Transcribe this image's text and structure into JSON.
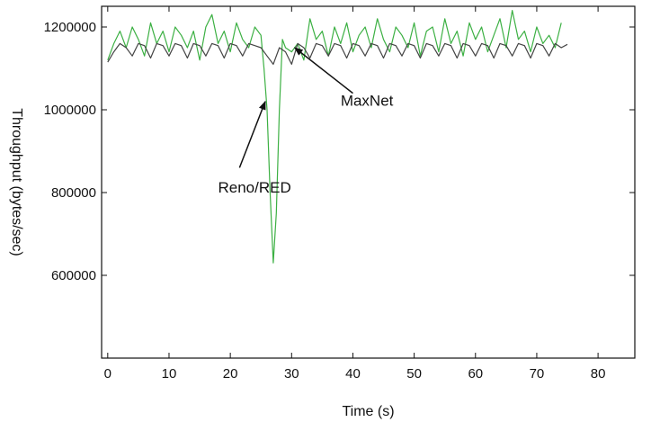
{
  "chart_data": {
    "type": "line",
    "title": "",
    "xlabel": "Time (s)",
    "ylabel": "Throughput (bytes/sec)",
    "xlim": [
      -1,
      86
    ],
    "ylim": [
      400000,
      1250000
    ],
    "xticks": [
      0,
      10,
      20,
      30,
      40,
      50,
      60,
      70,
      80
    ],
    "yticks": [
      600000,
      800000,
      1000000,
      1200000
    ],
    "grid": false,
    "series": [
      {
        "name": "Reno/RED",
        "color": "#3cb043",
        "x": [
          0,
          1,
          2,
          3,
          4,
          5,
          6,
          7,
          8,
          9,
          10,
          11,
          12,
          13,
          14,
          15,
          16,
          17,
          18,
          19,
          20,
          21,
          22,
          23,
          24,
          25,
          25.5,
          26,
          26.5,
          27,
          27.5,
          28,
          28.5,
          29,
          30,
          31,
          32,
          33,
          34,
          35,
          36,
          37,
          38,
          39,
          40,
          41,
          42,
          43,
          44,
          45,
          46,
          47,
          48,
          49,
          50,
          51,
          52,
          53,
          54,
          55,
          56,
          57,
          58,
          59,
          60,
          61,
          62,
          63,
          64,
          65,
          66,
          67,
          68,
          69,
          70,
          71,
          72,
          73,
          74
        ],
        "values": [
          1120000,
          1160000,
          1190000,
          1150000,
          1200000,
          1170000,
          1130000,
          1210000,
          1160000,
          1190000,
          1140000,
          1200000,
          1180000,
          1150000,
          1190000,
          1120000,
          1200000,
          1230000,
          1160000,
          1190000,
          1140000,
          1210000,
          1170000,
          1150000,
          1200000,
          1180000,
          1100000,
          1000000,
          800000,
          630000,
          750000,
          1000000,
          1170000,
          1150000,
          1140000,
          1160000,
          1120000,
          1220000,
          1170000,
          1190000,
          1130000,
          1200000,
          1160000,
          1210000,
          1140000,
          1180000,
          1200000,
          1150000,
          1220000,
          1170000,
          1140000,
          1200000,
          1180000,
          1150000,
          1210000,
          1130000,
          1190000,
          1200000,
          1140000,
          1220000,
          1160000,
          1190000,
          1130000,
          1210000,
          1170000,
          1200000,
          1140000,
          1180000,
          1220000,
          1150000,
          1240000,
          1170000,
          1190000,
          1140000,
          1200000,
          1160000,
          1180000,
          1150000,
          1210000
        ]
      },
      {
        "name": "MaxNet",
        "color": "#444444",
        "x": [
          0,
          1,
          2,
          3,
          4,
          5,
          6,
          7,
          8,
          9,
          10,
          11,
          12,
          13,
          14,
          15,
          16,
          17,
          18,
          19,
          20,
          21,
          22,
          23,
          24,
          25,
          26,
          27,
          28,
          29,
          30,
          31,
          32,
          33,
          34,
          35,
          36,
          37,
          38,
          39,
          40,
          41,
          42,
          43,
          44,
          45,
          46,
          47,
          48,
          49,
          50,
          51,
          52,
          53,
          54,
          55,
          56,
          57,
          58,
          59,
          60,
          61,
          62,
          63,
          64,
          65,
          66,
          67,
          68,
          69,
          70,
          71,
          72,
          73,
          74,
          75
        ],
        "values": [
          1115000,
          1140000,
          1160000,
          1150000,
          1130000,
          1160000,
          1155000,
          1125000,
          1160000,
          1155000,
          1130000,
          1160000,
          1155000,
          1125000,
          1160000,
          1155000,
          1130000,
          1160000,
          1155000,
          1125000,
          1160000,
          1155000,
          1130000,
          1160000,
          1155000,
          1150000,
          1130000,
          1110000,
          1150000,
          1140000,
          1110000,
          1160000,
          1150000,
          1125000,
          1160000,
          1155000,
          1130000,
          1160000,
          1155000,
          1125000,
          1160000,
          1155000,
          1130000,
          1160000,
          1155000,
          1125000,
          1160000,
          1155000,
          1130000,
          1160000,
          1155000,
          1125000,
          1160000,
          1155000,
          1130000,
          1160000,
          1155000,
          1125000,
          1160000,
          1155000,
          1130000,
          1160000,
          1155000,
          1125000,
          1160000,
          1155000,
          1130000,
          1160000,
          1155000,
          1125000,
          1160000,
          1155000,
          1130000,
          1160000,
          1150000,
          1158000
        ]
      }
    ],
    "annotations": [
      {
        "text": "Reno/RED",
        "x": 18,
        "y": 800000,
        "arrow_to_x": 25.7,
        "arrow_to_y": 1020000,
        "arrow_from_x": 21.5,
        "arrow_from_y": 860000
      },
      {
        "text": "MaxNet",
        "x": 38,
        "y": 1010000,
        "arrow_to_x": 30.5,
        "arrow_to_y": 1150000,
        "arrow_from_x": 40,
        "arrow_from_y": 1040000
      }
    ]
  }
}
